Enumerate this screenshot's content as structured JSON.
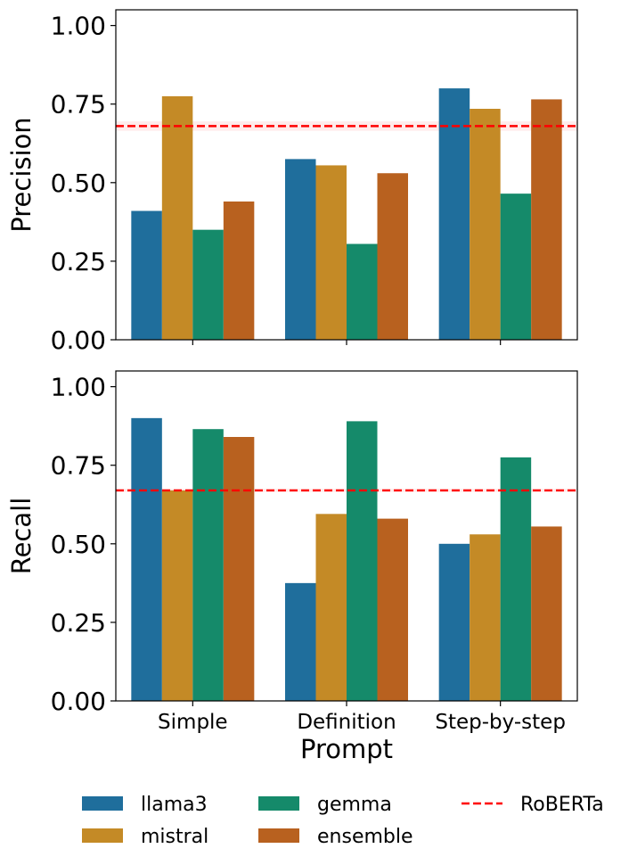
{
  "chart_data": [
    {
      "type": "bar",
      "ylabel": "Precision",
      "xlabel": "",
      "ylim": [
        0,
        1.05
      ],
      "yticks": [
        0.0,
        0.25,
        0.5,
        0.75,
        1.0
      ],
      "ytick_labels": [
        "0.00",
        "0.25",
        "0.50",
        "0.75",
        "1.00"
      ],
      "categories": [
        "Simple",
        "Definition",
        "Step-by-step"
      ],
      "series": [
        {
          "name": "llama3",
          "values": [
            0.41,
            0.575,
            0.8
          ]
        },
        {
          "name": "mistral",
          "values": [
            0.775,
            0.555,
            0.735
          ]
        },
        {
          "name": "gemma",
          "values": [
            0.35,
            0.305,
            0.465
          ]
        },
        {
          "name": "ensemble",
          "values": [
            0.44,
            0.53,
            0.765
          ]
        }
      ],
      "reference": {
        "name": "RoBERTa",
        "value": 0.68,
        "band": [
          0.665,
          0.695
        ]
      }
    },
    {
      "type": "bar",
      "ylabel": "Recall",
      "xlabel": "Prompt",
      "ylim": [
        0,
        1.05
      ],
      "yticks": [
        0.0,
        0.25,
        0.5,
        0.75,
        1.0
      ],
      "ytick_labels": [
        "0.00",
        "0.25",
        "0.50",
        "0.75",
        "1.00"
      ],
      "categories": [
        "Simple",
        "Definition",
        "Step-by-step"
      ],
      "series": [
        {
          "name": "llama3",
          "values": [
            0.9,
            0.375,
            0.5
          ]
        },
        {
          "name": "mistral",
          "values": [
            0.67,
            0.595,
            0.53
          ]
        },
        {
          "name": "gemma",
          "values": [
            0.865,
            0.89,
            0.775
          ]
        },
        {
          "name": "ensemble",
          "values": [
            0.84,
            0.58,
            0.555
          ]
        }
      ],
      "reference": {
        "name": "RoBERTa",
        "value": 0.67,
        "band": [
          0.665,
          0.675
        ]
      }
    }
  ],
  "legend": {
    "placement": "bottom",
    "entries": [
      {
        "label": "llama3",
        "color": "#1f6e9c"
      },
      {
        "label": "mistral",
        "color": "#c48a26"
      },
      {
        "label": "gemma",
        "color": "#158a6a"
      },
      {
        "label": "ensemble",
        "color": "#b8611f"
      },
      {
        "label": "RoBERTa",
        "color": "#ff0000",
        "style": "dashed"
      }
    ]
  }
}
